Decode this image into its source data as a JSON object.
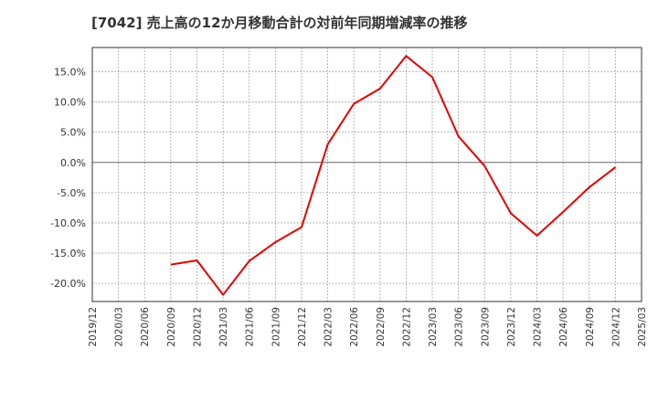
{
  "chart_data": {
    "type": "line",
    "title": "[7042]  売上高の12か月移動合計の対前年同期増減率の推移",
    "xlabel": "",
    "ylabel": "",
    "ylim": [
      -23,
      19
    ],
    "yticks": [
      15,
      10,
      5,
      0,
      -5,
      -10,
      -15,
      -20
    ],
    "ytick_labels": [
      "15.0%",
      "10.0%",
      "5.0%",
      "0.0%",
      "-5.0%",
      "-10.0%",
      "-15.0%",
      "-20.0%"
    ],
    "categories": [
      "2019/12",
      "2020/03",
      "2020/06",
      "2020/09",
      "2020/12",
      "2021/03",
      "2021/06",
      "2021/09",
      "2021/12",
      "2022/03",
      "2022/06",
      "2022/09",
      "2022/12",
      "2023/03",
      "2023/06",
      "2023/09",
      "2023/12",
      "2024/03",
      "2024/06",
      "2024/09",
      "2024/12",
      "2025/03"
    ],
    "series": [
      {
        "name": "増減率",
        "color": "#e60000",
        "x": [
          "2020/09",
          "2020/12",
          "2021/03",
          "2021/06",
          "2021/09",
          "2021/12",
          "2022/03",
          "2022/06",
          "2022/09",
          "2022/12",
          "2023/03",
          "2023/06",
          "2023/09",
          "2023/12",
          "2024/03",
          "2024/06",
          "2024/09",
          "2024/12"
        ],
        "values": [
          -16.9,
          -16.2,
          -21.9,
          -16.3,
          -13.2,
          -10.7,
          3.0,
          9.7,
          12.2,
          17.6,
          14.1,
          4.3,
          -0.6,
          -8.4,
          -12.1,
          -8.2,
          -4.1,
          -0.8
        ]
      }
    ],
    "grid": true,
    "zero_line": true
  }
}
